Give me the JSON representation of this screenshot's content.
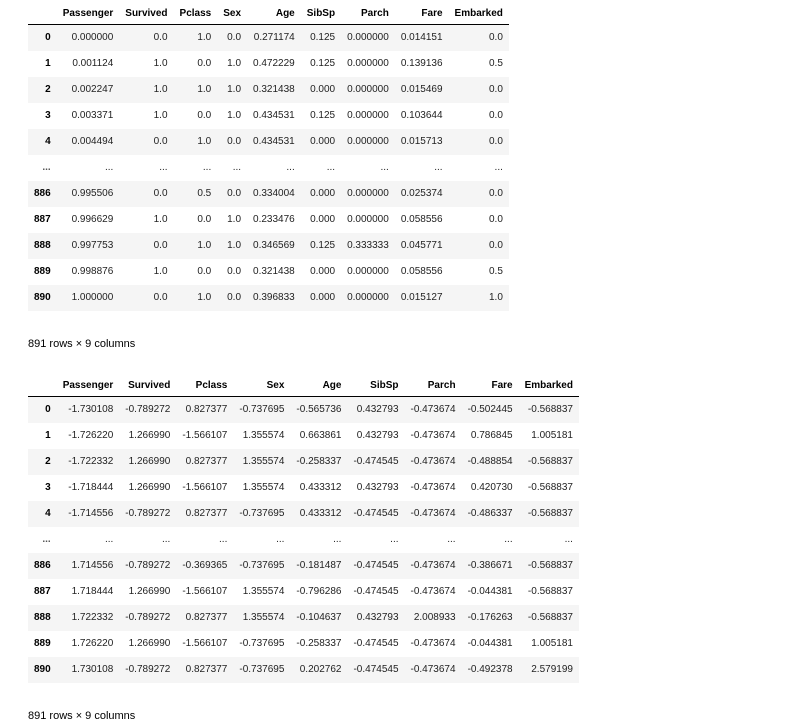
{
  "table1": {
    "columns": [
      "",
      "Passenger",
      "Survived",
      "Pclass",
      "Sex",
      "Age",
      "SibSp",
      "Parch",
      "Fare",
      "Embarked"
    ],
    "rows": [
      [
        "0",
        "0.000000",
        "0.0",
        "1.0",
        "0.0",
        "0.271174",
        "0.125",
        "0.000000",
        "0.014151",
        "0.0"
      ],
      [
        "1",
        "0.001124",
        "1.0",
        "0.0",
        "1.0",
        "0.472229",
        "0.125",
        "0.000000",
        "0.139136",
        "0.5"
      ],
      [
        "2",
        "0.002247",
        "1.0",
        "1.0",
        "1.0",
        "0.321438",
        "0.000",
        "0.000000",
        "0.015469",
        "0.0"
      ],
      [
        "3",
        "0.003371",
        "1.0",
        "0.0",
        "1.0",
        "0.434531",
        "0.125",
        "0.000000",
        "0.103644",
        "0.0"
      ],
      [
        "4",
        "0.004494",
        "0.0",
        "1.0",
        "0.0",
        "0.434531",
        "0.000",
        "0.000000",
        "0.015713",
        "0.0"
      ],
      [
        "...",
        "...",
        "...",
        "...",
        "...",
        "...",
        "...",
        "...",
        "...",
        "..."
      ],
      [
        "886",
        "0.995506",
        "0.0",
        "0.5",
        "0.0",
        "0.334004",
        "0.000",
        "0.000000",
        "0.025374",
        "0.0"
      ],
      [
        "887",
        "0.996629",
        "1.0",
        "0.0",
        "1.0",
        "0.233476",
        "0.000",
        "0.000000",
        "0.058556",
        "0.0"
      ],
      [
        "888",
        "0.997753",
        "0.0",
        "1.0",
        "1.0",
        "0.346569",
        "0.125",
        "0.333333",
        "0.045771",
        "0.0"
      ],
      [
        "889",
        "0.998876",
        "1.0",
        "0.0",
        "0.0",
        "0.321438",
        "0.000",
        "0.000000",
        "0.058556",
        "0.5"
      ],
      [
        "890",
        "1.000000",
        "0.0",
        "1.0",
        "0.0",
        "0.396833",
        "0.000",
        "0.000000",
        "0.015127",
        "1.0"
      ]
    ],
    "summary": "891 rows × 9 columns"
  },
  "table2": {
    "columns": [
      "",
      "Passenger",
      "Survived",
      "Pclass",
      "Sex",
      "Age",
      "SibSp",
      "Parch",
      "Fare",
      "Embarked"
    ],
    "rows": [
      [
        "0",
        "-1.730108",
        "-0.789272",
        "0.827377",
        "-0.737695",
        "-0.565736",
        "0.432793",
        "-0.473674",
        "-0.502445",
        "-0.568837"
      ],
      [
        "1",
        "-1.726220",
        "1.266990",
        "-1.566107",
        "1.355574",
        "0.663861",
        "0.432793",
        "-0.473674",
        "0.786845",
        "1.005181"
      ],
      [
        "2",
        "-1.722332",
        "1.266990",
        "0.827377",
        "1.355574",
        "-0.258337",
        "-0.474545",
        "-0.473674",
        "-0.488854",
        "-0.568837"
      ],
      [
        "3",
        "-1.718444",
        "1.266990",
        "-1.566107",
        "1.355574",
        "0.433312",
        "0.432793",
        "-0.473674",
        "0.420730",
        "-0.568837"
      ],
      [
        "4",
        "-1.714556",
        "-0.789272",
        "0.827377",
        "-0.737695",
        "0.433312",
        "-0.474545",
        "-0.473674",
        "-0.486337",
        "-0.568837"
      ],
      [
        "...",
        "...",
        "...",
        "...",
        "...",
        "...",
        "...",
        "...",
        "...",
        "..."
      ],
      [
        "886",
        "1.714556",
        "-0.789272",
        "-0.369365",
        "-0.737695",
        "-0.181487",
        "-0.474545",
        "-0.473674",
        "-0.386671",
        "-0.568837"
      ],
      [
        "887",
        "1.718444",
        "1.266990",
        "-1.566107",
        "1.355574",
        "-0.796286",
        "-0.474545",
        "-0.473674",
        "-0.044381",
        "-0.568837"
      ],
      [
        "888",
        "1.722332",
        "-0.789272",
        "0.827377",
        "1.355574",
        "-0.104637",
        "0.432793",
        "2.008933",
        "-0.176263",
        "-0.568837"
      ],
      [
        "889",
        "1.726220",
        "1.266990",
        "-1.566107",
        "-0.737695",
        "-0.258337",
        "-0.474545",
        "-0.473674",
        "-0.044381",
        "1.005181"
      ],
      [
        "890",
        "1.730108",
        "-0.789272",
        "0.827377",
        "-0.737695",
        "0.202762",
        "-0.474545",
        "-0.473674",
        "-0.492378",
        "2.579199"
      ]
    ],
    "summary": "891 rows × 9 columns"
  }
}
